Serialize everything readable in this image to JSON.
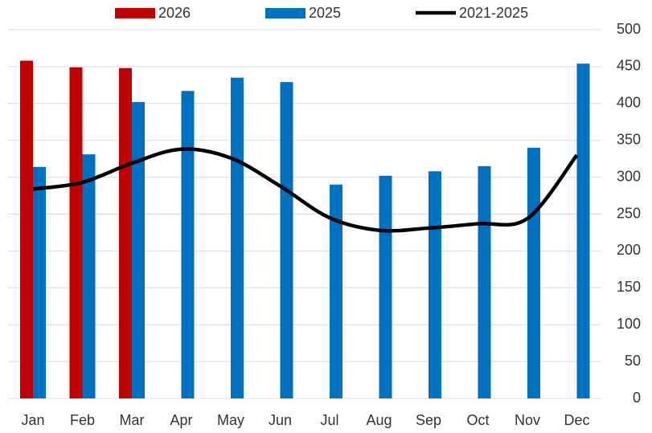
{
  "chart_data": {
    "type": "bar_line",
    "categories": [
      "Jan",
      "Feb",
      "Mar",
      "Apr",
      "May",
      "Jun",
      "Jul",
      "Aug",
      "Sep",
      "Oct",
      "Nov",
      "Dec"
    ],
    "series": [
      {
        "name": "2026",
        "type": "bar",
        "color": "#c00000",
        "values": [
          458,
          449,
          448,
          null,
          null,
          null,
          null,
          null,
          null,
          null,
          null,
          null
        ]
      },
      {
        "name": "2025",
        "type": "bar",
        "color": "#0070c0",
        "values": [
          314,
          331,
          402,
          417,
          435,
          429,
          290,
          302,
          308,
          315,
          340,
          454
        ]
      },
      {
        "name": "2021-2025",
        "type": "line",
        "color": "#000000",
        "values": [
          284,
          293,
          319,
          338,
          326,
          288,
          245,
          228,
          231,
          237,
          244,
          330
        ]
      }
    ],
    "ylim": [
      0,
      500
    ],
    "yticks": [
      0,
      50,
      100,
      150,
      200,
      250,
      300,
      350,
      400,
      450,
      500
    ],
    "grid": true
  }
}
